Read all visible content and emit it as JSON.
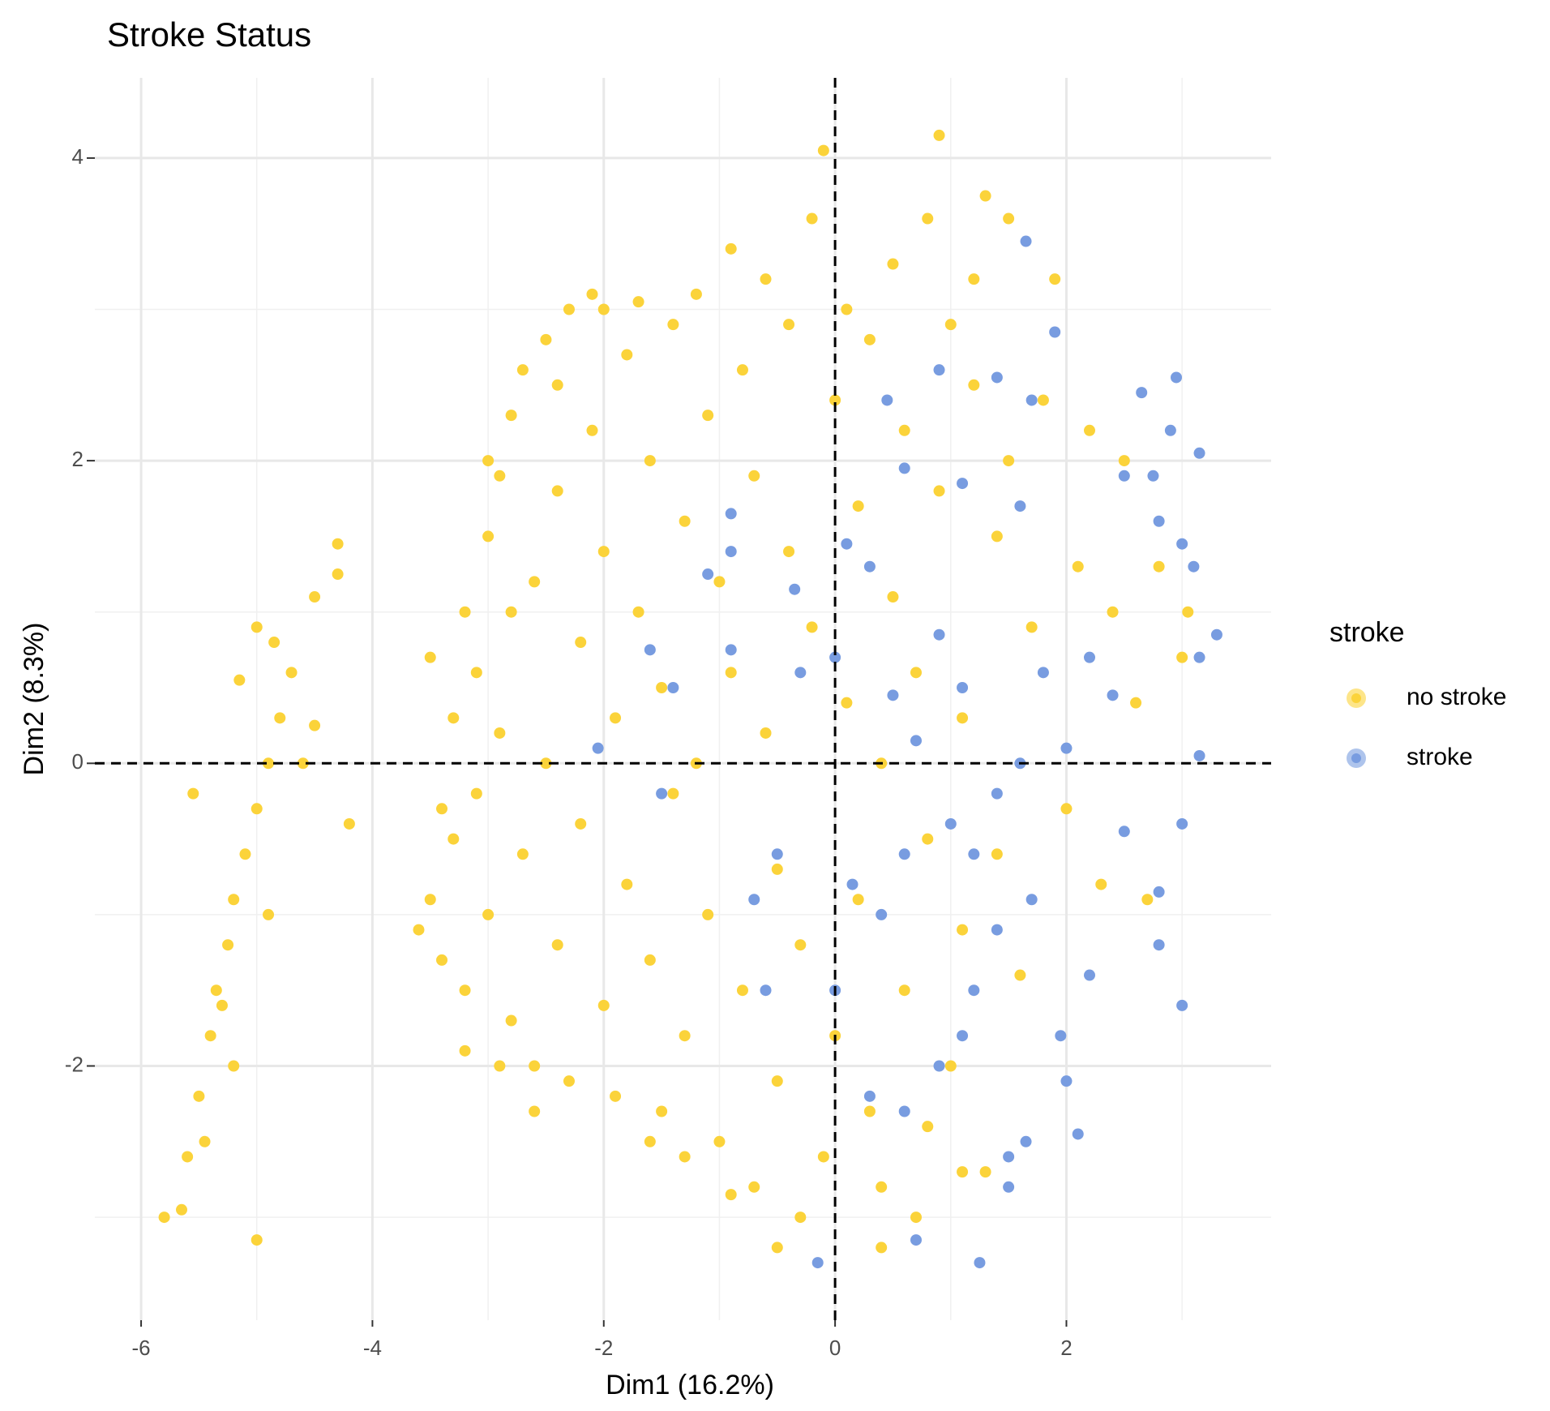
{
  "chart_data": {
    "type": "scatter",
    "title": "Stroke Status",
    "x_label": "Dim1 (16.2%)",
    "y_label": "Dim2 (8.3%)",
    "legend_title": "stroke",
    "legend": "right",
    "xlim": [
      -6.4,
      3.77
    ],
    "ylim": [
      -3.68,
      4.53
    ],
    "xticks": [
      -6,
      -4,
      -2,
      0,
      2
    ],
    "yticks": [
      -2,
      0,
      2,
      4
    ],
    "x_minor_grid": [
      -5,
      -3,
      -1,
      1,
      3
    ],
    "y_minor_grid": [
      -3,
      -1,
      1,
      3
    ],
    "grid": true,
    "reference_x": 0,
    "reference_y": 0,
    "series": [
      {
        "name": "no stroke",
        "color": "#FBD33A",
        "x": [
          -5.8,
          -5.65,
          -5.0,
          -5.6,
          -5.5,
          -5.4,
          -5.35,
          -5.25,
          -5.2,
          -5.1,
          -5.0,
          -4.9,
          -4.8,
          -5.0,
          -4.85,
          -4.7,
          -5.15,
          -4.3,
          -4.3,
          -4.5,
          -4.2,
          -5.55,
          -4.6,
          -4.5,
          -5.3,
          -5.45,
          -5.2,
          -4.9,
          -3.6,
          -3.5,
          -3.4,
          -3.3,
          -3.3,
          -3.2,
          -3.2,
          -3.1,
          -3.1,
          -3.0,
          -3.0,
          -2.9,
          -2.9,
          -2.8,
          -2.8,
          -2.7,
          -2.7,
          -2.6,
          -2.6,
          -2.5,
          -2.5,
          -2.4,
          -2.4,
          -2.3,
          -2.3,
          -2.2,
          -2.2,
          -2.1,
          -2.1,
          -2.0,
          -2.0,
          -1.9,
          -1.9,
          -1.8,
          -1.8,
          -1.7,
          -1.7,
          -1.6,
          -1.6,
          -1.5,
          -1.5,
          -1.4,
          -1.4,
          -1.3,
          -1.3,
          -1.2,
          -1.2,
          -1.1,
          -1.1,
          -1.0,
          -1.0,
          -0.9,
          -0.9,
          -0.8,
          -0.8,
          -0.7,
          -0.7,
          -0.6,
          -0.6,
          -0.5,
          -0.5,
          -0.4,
          -0.4,
          -0.3,
          -0.3,
          -0.2,
          -0.2,
          -0.1,
          -0.1,
          0.0,
          0.0,
          0.1,
          0.1,
          0.2,
          0.2,
          0.3,
          0.3,
          0.4,
          0.4,
          0.5,
          0.5,
          0.6,
          0.6,
          0.7,
          0.7,
          0.8,
          0.8,
          0.9,
          0.9,
          1.0,
          1.0,
          1.1,
          1.1,
          1.2,
          1.2,
          1.3,
          1.3,
          1.4,
          1.4,
          1.5,
          1.5,
          1.6,
          1.7,
          1.8,
          1.9,
          2.0,
          2.1,
          2.2,
          2.3,
          2.4,
          2.5,
          2.6,
          2.7,
          2.8,
          3.0,
          3.05,
          -3.5,
          -3.4,
          -3.2,
          -2.9,
          -2.6,
          -2.4,
          -2.0,
          -1.6,
          -1.3,
          -0.5,
          -0.9,
          0.4,
          1.1,
          0.8,
          -3.0,
          -2.8
        ],
        "y": [
          -3.0,
          -2.95,
          -3.15,
          -2.6,
          -2.2,
          -1.8,
          -1.5,
          -1.2,
          -0.9,
          -0.6,
          -0.3,
          0.0,
          0.3,
          0.9,
          0.8,
          0.6,
          0.55,
          1.25,
          1.45,
          1.1,
          -0.4,
          -0.2,
          0.0,
          0.25,
          -1.6,
          -2.5,
          -2.0,
          -1.0,
          -1.1,
          -0.9,
          -1.3,
          -0.5,
          0.3,
          -1.5,
          1.0,
          0.6,
          -0.2,
          1.5,
          -1.0,
          1.9,
          0.2,
          -1.7,
          2.3,
          2.6,
          -0.6,
          1.2,
          -2.0,
          2.8,
          0.0,
          -1.2,
          1.8,
          3.0,
          -2.1,
          0.8,
          -0.4,
          2.2,
          3.1,
          -1.6,
          1.4,
          0.3,
          -2.2,
          2.7,
          -0.8,
          1.0,
          3.05,
          -1.3,
          2.0,
          0.5,
          -2.3,
          2.9,
          -0.2,
          1.6,
          -1.8,
          3.1,
          0.0,
          2.3,
          -1.0,
          -2.5,
          1.2,
          3.4,
          0.6,
          -1.5,
          2.6,
          -2.8,
          1.9,
          0.2,
          3.2,
          -0.7,
          -2.1,
          1.4,
          2.9,
          -1.2,
          -3.0,
          3.6,
          0.9,
          4.05,
          -2.6,
          2.4,
          -1.8,
          3.0,
          0.4,
          -0.9,
          1.7,
          -2.3,
          2.8,
          0.0,
          -2.8,
          3.3,
          1.1,
          -1.5,
          2.2,
          -3.0,
          0.6,
          3.6,
          -0.5,
          4.15,
          1.8,
          -2.0,
          2.9,
          0.3,
          -1.1,
          2.5,
          3.2,
          3.75,
          -2.7,
          1.5,
          -0.6,
          3.6,
          2.0,
          -1.4,
          0.9,
          2.4,
          3.2,
          -0.3,
          1.3,
          2.2,
          -0.8,
          1.0,
          2.0,
          0.4,
          -0.9,
          1.3,
          0.7,
          1.0,
          0.7,
          -0.3,
          -1.9,
          -2.0,
          -2.3,
          2.5,
          3.0,
          -2.5,
          -2.6,
          -3.2,
          -2.85,
          -3.2,
          -2.7,
          -2.4,
          2.0,
          1.0
        ]
      },
      {
        "name": "stroke",
        "color": "#789CE0",
        "x": [
          1.65,
          1.9,
          2.65,
          2.95,
          3.15,
          2.75,
          2.8,
          3.0,
          3.1,
          3.3,
          3.15,
          3.15,
          3.0,
          3.0,
          2.8,
          2.8,
          2.5,
          2.2,
          2.1,
          2.0,
          1.95,
          1.65,
          1.5,
          1.5,
          1.25,
          -0.15,
          0.7,
          0.6,
          0.9,
          1.1,
          1.2,
          0.3,
          0.0,
          -0.6,
          -0.5,
          -0.7,
          -1.5,
          -2.05,
          -1.4,
          -1.6,
          -0.9,
          -1.1,
          -0.9,
          -0.9,
          -0.35,
          -0.3,
          0.0,
          0.1,
          0.3,
          0.5,
          0.7,
          0.9,
          1.1,
          1.2,
          1.4,
          1.6,
          1.8,
          2.0,
          2.2,
          2.4,
          1.7,
          1.4,
          1.0,
          0.6,
          0.4,
          0.15,
          0.9,
          1.4,
          1.7,
          0.45,
          0.6,
          1.1,
          1.6,
          2.5,
          2.9
        ],
        "y": [
          3.45,
          2.85,
          2.45,
          2.55,
          2.05,
          1.9,
          1.6,
          1.45,
          1.3,
          0.85,
          0.7,
          0.05,
          -0.4,
          -1.6,
          -0.85,
          -1.2,
          -0.45,
          -1.4,
          -2.45,
          -2.1,
          -1.8,
          -2.5,
          -2.6,
          -2.8,
          -3.3,
          -3.3,
          -3.15,
          -2.3,
          -2.0,
          -1.8,
          -1.5,
          -2.2,
          -1.5,
          -1.5,
          -0.6,
          -0.9,
          -0.2,
          0.1,
          0.5,
          0.75,
          0.75,
          1.25,
          1.65,
          1.4,
          1.15,
          0.6,
          0.7,
          1.45,
          1.3,
          0.45,
          0.15,
          0.85,
          0.5,
          -0.6,
          -0.2,
          0.0,
          0.6,
          0.1,
          0.7,
          0.45,
          -0.9,
          -1.1,
          -0.4,
          -0.6,
          -1.0,
          -0.8,
          2.6,
          2.55,
          2.4,
          2.4,
          1.95,
          1.85,
          1.7,
          1.9,
          2.2
        ]
      }
    ]
  }
}
